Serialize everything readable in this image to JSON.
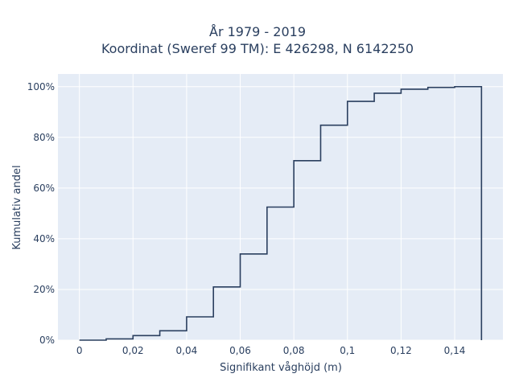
{
  "chart_data": {
    "type": "line",
    "title_line1": "År 1979 - 2019",
    "title_line2": "Koordinat (Sweref 99 TM): E 426298, N 6142250",
    "xlabel": "Signifikant våghöjd (m)",
    "ylabel": "Kumulativ andel",
    "xlim": [
      -0.008,
      0.158
    ],
    "ylim": [
      0,
      1.05
    ],
    "x_ticks": [
      0,
      0.02,
      0.04,
      0.06,
      0.08,
      0.1,
      0.12,
      0.14
    ],
    "x_tick_labels": [
      "0",
      "0,02",
      "0,04",
      "0,06",
      "0,08",
      "0,1",
      "0,12",
      "0,14"
    ],
    "y_ticks": [
      0,
      0.2,
      0.4,
      0.6,
      0.8,
      1.0
    ],
    "y_tick_labels": [
      "0%",
      "20%",
      "40%",
      "60%",
      "80%",
      "100%"
    ],
    "grid": true,
    "series": [
      {
        "step": "hv",
        "line_color": "#2a3f5f",
        "x": [
          0,
          0.01,
          0.02,
          0.03,
          0.04,
          0.05,
          0.06,
          0.07,
          0.08,
          0.09,
          0.1,
          0.11,
          0.12,
          0.13,
          0.14,
          0.15
        ],
        "y": [
          0.0,
          0.005,
          0.018,
          0.037,
          0.092,
          0.21,
          0.34,
          0.525,
          0.708,
          0.848,
          0.942,
          0.974,
          0.99,
          0.997,
          1.0,
          1.0
        ]
      }
    ]
  }
}
